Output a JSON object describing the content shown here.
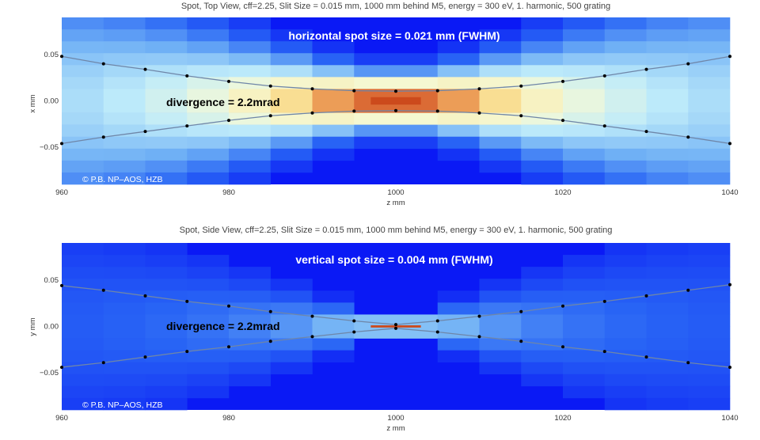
{
  "colors": {
    "background_blue": "#0a19f5",
    "beam_line": "#6f86a8",
    "dots": "#000000",
    "hot": "#cc4a1c",
    "overlay_text": "#ffffff"
  },
  "chart_data": [
    {
      "type": "heatmap",
      "title": "Spot, Top View, cff=2.25, Slit Size = 0.015 mm, 1000 mm behind M5, energy = 300 eV, 1. harmonic, 500 grating",
      "xlabel": "z  mm",
      "ylabel": "x  mm",
      "xlim": [
        960,
        1040
      ],
      "ylim": [
        -0.09,
        0.09
      ],
      "xticks": [
        960,
        980,
        1000,
        1020,
        1040
      ],
      "xtick_labels": [
        "960",
        "980",
        "1000",
        "1020",
        "1040"
      ],
      "yticks": [
        0.05,
        0.0,
        -0.05
      ],
      "ytick_labels": [
        "0.05",
        "0.00",
        "−0.05"
      ],
      "annotation_spot": "horizontal spot size = 0.021 mm (FWHM)",
      "annotation_divergence": "divergence = 2.2mrad",
      "copyright": "© P.B. NP–AOS, HZB",
      "waist_half_width": 0.0105,
      "divergence_mrad": 2.2,
      "series": [
        {
          "name": "upper envelope",
          "x": [
            960,
            965,
            970,
            975,
            980,
            985,
            990,
            995,
            1000,
            1005,
            1010,
            1015,
            1020,
            1025,
            1030,
            1035,
            1040
          ],
          "y": [
            0.048,
            0.04,
            0.034,
            0.027,
            0.021,
            0.016,
            0.013,
            0.011,
            0.0105,
            0.011,
            0.013,
            0.016,
            0.021,
            0.027,
            0.034,
            0.04,
            0.048
          ]
        },
        {
          "name": "lower envelope",
          "x": [
            960,
            965,
            970,
            975,
            980,
            985,
            990,
            995,
            1000,
            1005,
            1010,
            1015,
            1020,
            1025,
            1030,
            1035,
            1040
          ],
          "y": [
            -0.046,
            -0.039,
            -0.033,
            -0.027,
            -0.021,
            -0.016,
            -0.013,
            -0.011,
            -0.0105,
            -0.011,
            -0.013,
            -0.016,
            -0.021,
            -0.027,
            -0.033,
            -0.039,
            -0.046
          ]
        }
      ]
    },
    {
      "type": "heatmap",
      "title": "Spot, Side View, cff=2.25, Slit Size = 0.015 mm, 1000 mm behind M5, energy = 300 eV, 1. harmonic, 500 grating",
      "xlabel": "z  mm",
      "ylabel": "y  mm",
      "xlim": [
        960,
        1040
      ],
      "ylim": [
        -0.09,
        0.09
      ],
      "xticks": [
        960,
        980,
        1000,
        1020,
        1040
      ],
      "xtick_labels": [
        "960",
        "980",
        "1000",
        "1020",
        "1040"
      ],
      "yticks": [
        0.05,
        0.0,
        -0.05
      ],
      "ytick_labels": [
        "0.05",
        "0.00",
        "−0.05"
      ],
      "annotation_spot": "vertical spot size = 0.004 mm (FWHM)",
      "annotation_divergence": "divergence = 2.2mrad",
      "copyright": "© P.B. NP–AOS, HZB",
      "waist_half_width": 0.002,
      "divergence_mrad": 2.2,
      "series": [
        {
          "name": "upper envelope",
          "x": [
            960,
            965,
            970,
            975,
            980,
            985,
            990,
            995,
            1000,
            1005,
            1010,
            1015,
            1020,
            1025,
            1030,
            1035,
            1040
          ],
          "y": [
            0.044,
            0.039,
            0.033,
            0.027,
            0.022,
            0.016,
            0.011,
            0.006,
            0.002,
            0.006,
            0.011,
            0.016,
            0.022,
            0.027,
            0.033,
            0.039,
            0.045
          ]
        },
        {
          "name": "lower envelope",
          "x": [
            960,
            965,
            970,
            975,
            980,
            985,
            990,
            995,
            1000,
            1005,
            1010,
            1015,
            1020,
            1025,
            1030,
            1035,
            1040
          ],
          "y": [
            -0.044,
            -0.039,
            -0.033,
            -0.027,
            -0.022,
            -0.016,
            -0.011,
            -0.006,
            -0.002,
            -0.006,
            -0.011,
            -0.016,
            -0.022,
            -0.027,
            -0.033,
            -0.039,
            -0.044
          ]
        }
      ]
    }
  ]
}
